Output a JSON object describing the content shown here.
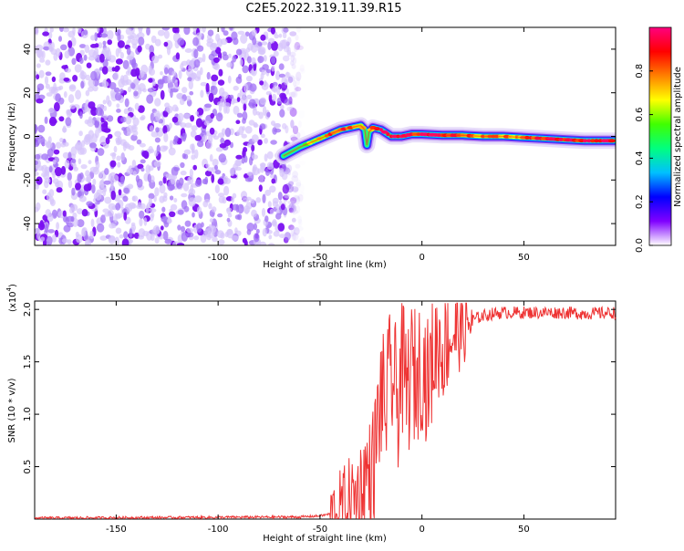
{
  "title": "C2E5.2022.319.11.39.R15",
  "chart_data": [
    {
      "type": "heatmap",
      "xlabel": "Height of straight line (km)",
      "ylabel": "Frequency (Hz)",
      "xlim": [
        -190,
        95
      ],
      "ylim": [
        -50,
        50
      ],
      "xticks": [
        -150,
        -100,
        -50,
        0,
        50
      ],
      "yticks": [
        -40,
        -20,
        0,
        20,
        40
      ],
      "noise_region_x": [
        -190,
        -62
      ],
      "ridge": {
        "x": [
          -68,
          -64,
          -60,
          -55,
          -50,
          -45,
          -40,
          -35,
          -30,
          -28,
          -27,
          -26,
          -24,
          -20,
          -15,
          -10,
          -5,
          0,
          10,
          20,
          30,
          40,
          50,
          60,
          70,
          80,
          95
        ],
        "freq": [
          -9,
          -7,
          -5,
          -3,
          -1,
          1,
          3,
          4,
          5,
          3,
          -4,
          2,
          4,
          3,
          0,
          0,
          1,
          1,
          0.5,
          0.5,
          0,
          0,
          -0.5,
          -1,
          -1.5,
          -2,
          -2
        ],
        "amp": [
          0.25,
          0.35,
          0.45,
          0.55,
          0.7,
          0.8,
          0.85,
          0.8,
          0.75,
          0.5,
          0.3,
          0.6,
          0.85,
          0.9,
          0.95,
          0.95,
          0.9,
          0.95,
          0.85,
          0.8,
          0.75,
          0.75,
          0.8,
          0.85,
          0.9,
          0.95,
          0.95
        ]
      },
      "colorbar": {
        "label": "Normalized spectral amplitude",
        "range": [
          0,
          1
        ],
        "ticks": [
          "0.0",
          "0.2",
          "0.4",
          "0.6",
          "0.8"
        ],
        "colors": [
          "#ffffff",
          "#8000ff",
          "#0000ff",
          "#00c0ff",
          "#00ff80",
          "#40ff00",
          "#ffff00",
          "#ff8000",
          "#ff0000",
          "#ff0080"
        ]
      }
    },
    {
      "type": "line",
      "xlabel": "Height of straight line (km)",
      "ylabel": "SNR (10 * v/v)",
      "y_multiplier": "(x10",
      "y_multiplier_exp": "4",
      "y_multiplier_close": ")",
      "xlim": [
        -190,
        95
      ],
      "ylim": [
        0,
        2.08
      ],
      "xticks": [
        -150,
        -100,
        -50,
        0,
        50
      ],
      "yticks": [
        "0.5",
        "1.0",
        "1.5",
        "2.0"
      ],
      "series": [
        {
          "color": "#ee3333",
          "x": [
            -190,
            -60,
            -50,
            -45,
            -40,
            -35,
            -30,
            -27,
            -25,
            -22,
            -20,
            -18,
            -15,
            -12,
            -10,
            -8,
            -5,
            -3,
            0,
            3,
            5,
            8,
            10,
            12,
            15,
            18,
            20,
            25,
            30,
            35,
            40,
            50,
            60,
            70,
            80,
            95
          ],
          "values": [
            0.01,
            0.02,
            0.03,
            0.05,
            0.1,
            0.15,
            0.25,
            0.45,
            0.35,
            0.8,
            1.2,
            1.05,
            1.4,
            1.1,
            1.5,
            1.2,
            1.4,
            1.35,
            1.5,
            1.3,
            1.5,
            1.7,
            1.6,
            1.7,
            1.75,
            1.8,
            1.82,
            1.9,
            1.94,
            1.96,
            1.97,
            1.97,
            1.97,
            1.97,
            1.96,
            1.97
          ],
          "noise_amplitude": 0.06
        }
      ]
    }
  ]
}
